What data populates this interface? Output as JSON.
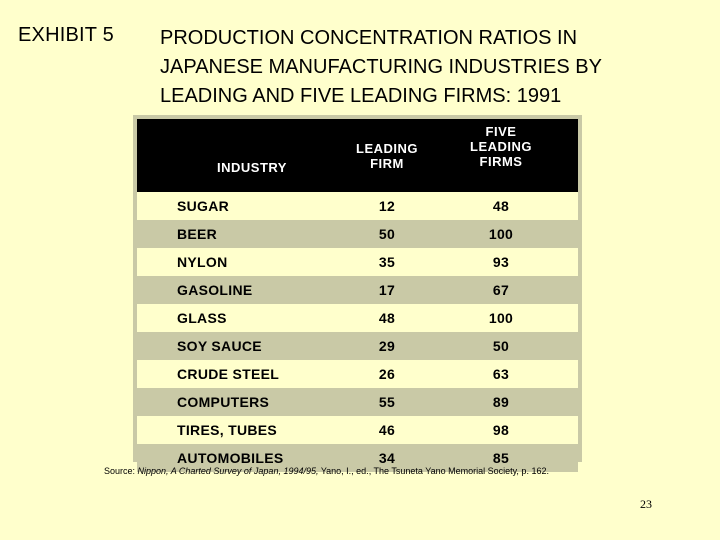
{
  "header": {
    "exhibit": "EXHIBIT 5",
    "title_lines": [
      "PRODUCTION CONCENTRATION RATIOS IN",
      "JAPANESE MANUFACTURING INDUSTRIES BY",
      "LEADING AND FIVE LEADING FIRMS: 1991"
    ]
  },
  "table": {
    "columns": {
      "industry": "INDUSTRY",
      "leading_1": "LEADING",
      "leading_2": "FIRM",
      "five_1": "FIVE",
      "five_2": "LEADING",
      "five_3": "FIRMS"
    },
    "rows": [
      {
        "industry": "SUGAR",
        "leading": "12",
        "five": "48"
      },
      {
        "industry": "BEER",
        "leading": "50",
        "five": "100"
      },
      {
        "industry": "NYLON",
        "leading": "35",
        "five": "93"
      },
      {
        "industry": "GASOLINE",
        "leading": "17",
        "five": "67"
      },
      {
        "industry": "GLASS",
        "leading": "48",
        "five": "100"
      },
      {
        "industry": "SOY SAUCE",
        "leading": "29",
        "five": "50"
      },
      {
        "industry": "CRUDE STEEL",
        "leading": "26",
        "five": "63"
      },
      {
        "industry": "COMPUTERS",
        "leading": "55",
        "five": "89"
      },
      {
        "industry": "TIRES, TUBES",
        "leading": "46",
        "five": "98"
      },
      {
        "industry": "AUTOMOBILES",
        "leading": "34",
        "five": "85"
      }
    ]
  },
  "source": {
    "prefix": "Source: ",
    "italic": "Nippon, A Charted Survey of Japan, 1994/95,",
    "rest": " Yano, I., ed., The Tsuneta Yano Memorial Society, p. 162."
  },
  "page_number": "23"
}
